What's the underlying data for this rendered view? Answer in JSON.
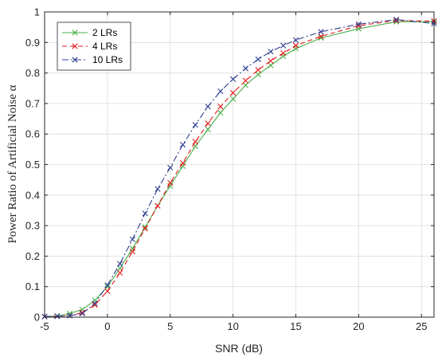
{
  "chart_data": {
    "type": "line",
    "xlabel": "SNR (dB)",
    "ylabel": "Power Ratio of Artificial Noise α",
    "xlim": [
      -5,
      26
    ],
    "ylim": [
      0,
      1
    ],
    "xticks": [
      -5,
      0,
      5,
      10,
      15,
      20,
      25
    ],
    "yticks": [
      0,
      0.1,
      0.2,
      0.3,
      0.4,
      0.5,
      0.6,
      0.7,
      0.8,
      0.9,
      1
    ],
    "xtick_labels": [
      "-5",
      "0",
      "5",
      "10",
      "15",
      "20",
      "25"
    ],
    "ytick_labels": [
      "0",
      "0.1",
      "0.2",
      "0.3",
      "0.4",
      "0.5",
      "0.6",
      "0.7",
      "0.8",
      "0.9",
      "1"
    ],
    "grid": true,
    "legend_position": "top-left",
    "series": [
      {
        "name": "2 LRs",
        "color": "#4daf4a",
        "line_style": "solid",
        "marker": "x",
        "x": [
          -5,
          -4,
          -3,
          -2,
          -1,
          0,
          1,
          2,
          3,
          4,
          5,
          6,
          7,
          8,
          9,
          10,
          11,
          12,
          13,
          14,
          15,
          17,
          20,
          23,
          26
        ],
        "y": [
          0.002,
          0.004,
          0.012,
          0.025,
          0.055,
          0.1,
          0.16,
          0.225,
          0.295,
          0.365,
          0.43,
          0.495,
          0.56,
          0.615,
          0.67,
          0.715,
          0.76,
          0.795,
          0.825,
          0.855,
          0.88,
          0.915,
          0.945,
          0.968,
          0.968
        ]
      },
      {
        "name": "4 LRs",
        "color": "#e41a1c",
        "line_style": "dashed",
        "marker": "x",
        "x": [
          -5,
          -4,
          -3,
          -2,
          -1,
          0,
          1,
          2,
          3,
          4,
          5,
          6,
          7,
          8,
          9,
          10,
          11,
          12,
          13,
          14,
          15,
          17,
          20,
          23,
          26
        ],
        "y": [
          0.002,
          0.003,
          0.005,
          0.015,
          0.04,
          0.085,
          0.145,
          0.215,
          0.29,
          0.365,
          0.44,
          0.505,
          0.575,
          0.635,
          0.69,
          0.735,
          0.775,
          0.81,
          0.84,
          0.865,
          0.89,
          0.92,
          0.955,
          0.972,
          0.97
        ]
      },
      {
        "name": "10 LRs",
        "color": "#2c3e91",
        "line_style": "dashdot",
        "marker": "x",
        "x": [
          -5,
          -4,
          -3,
          -2,
          -1,
          0,
          1,
          2,
          3,
          4,
          5,
          6,
          7,
          8,
          9,
          10,
          11,
          12,
          13,
          14,
          15,
          17,
          20,
          23,
          26
        ],
        "y": [
          0.002,
          0.003,
          0.005,
          0.012,
          0.045,
          0.105,
          0.175,
          0.255,
          0.34,
          0.42,
          0.49,
          0.565,
          0.63,
          0.69,
          0.74,
          0.78,
          0.815,
          0.845,
          0.87,
          0.89,
          0.908,
          0.935,
          0.96,
          0.975,
          0.962
        ]
      }
    ]
  }
}
